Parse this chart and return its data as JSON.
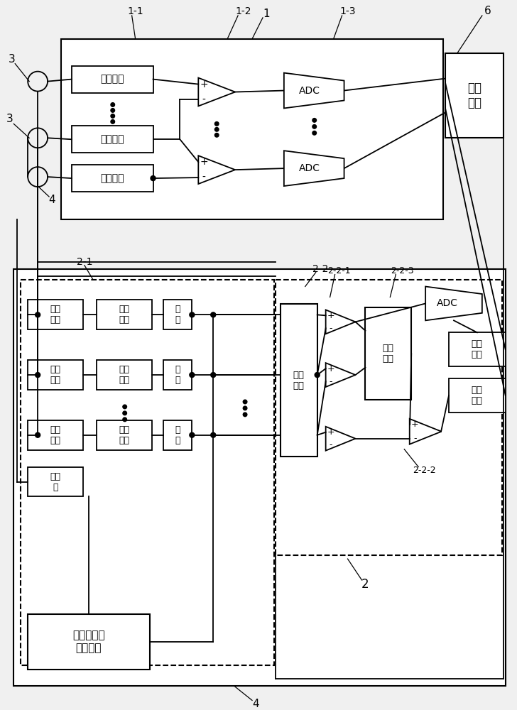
{
  "bg_color": "#f0f0f0",
  "line_color": "#000000",
  "labels": {
    "n1": "1",
    "n11": "1-1",
    "n12": "1-2",
    "n13": "1-3",
    "n2": "2",
    "n21": "2-1",
    "n22": "2-2",
    "n221": "2-2-1",
    "n222": "2-2-2",
    "n223": "2-2-3",
    "n3a": "3",
    "n3b": "3",
    "n4": "4",
    "n6": "6",
    "filt": "前级滤波",
    "adc": "ADC",
    "mcu": "微处\n理器",
    "xpdc": "选频\n电路",
    "mabk": "模拟\n开关",
    "xlr1": "限流\n电阻",
    "xlr2": "限流\n电阻",
    "xlr3": "限流\n电阻",
    "jfwl1": "积分\n网络",
    "jfwl2": "积分\n网络",
    "jfwl3": "积分\n网络",
    "gejz1": "隔\n直",
    "gejz2": "隔\n直",
    "gejz3": "隔\n直",
    "fxq": "反相\n器",
    "genpj": "高频激励方\n波发生器",
    "ejfd": "二级\n放大",
    "jtdl": "解调\n电路"
  }
}
